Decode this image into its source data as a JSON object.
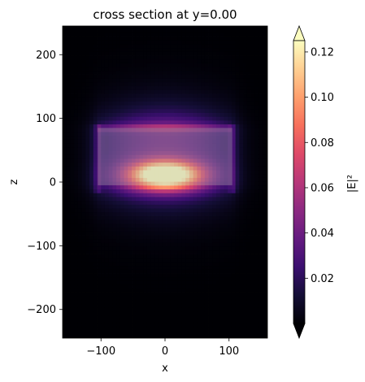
{
  "chart_data": {
    "type": "heatmap",
    "title": "cross section at y=0.00",
    "xlabel": "x",
    "ylabel": "z",
    "xlim": [
      -160,
      160
    ],
    "ylim": [
      -245,
      245
    ],
    "x_ticks": [
      -100,
      0,
      100
    ],
    "y_ticks": [
      -200,
      -100,
      0,
      100,
      200
    ],
    "x_tick_labels": [
      "−100",
      "0",
      "100"
    ],
    "y_tick_labels": [
      "−200",
      "−100",
      "0",
      "100",
      "200"
    ],
    "grid": false,
    "colormap": "magma",
    "colorbar": {
      "label": "|E|²",
      "range": [
        0.0,
        0.125
      ],
      "extend": "both",
      "ticks": [
        0.02,
        0.04,
        0.06,
        0.08,
        0.1,
        0.12
      ],
      "tick_labels": [
        "0.02",
        "0.04",
        "0.06",
        "0.08",
        "0.10",
        "0.12"
      ]
    },
    "field": {
      "peak_value": 0.125,
      "peak_x": 0,
      "peak_z": 12,
      "spread_x": 40,
      "spread_z": 15
    },
    "overlay_structure": {
      "x_range": [
        -105,
        105
      ],
      "z_range": [
        -5,
        85
      ],
      "color": "#aaaaaa"
    }
  }
}
